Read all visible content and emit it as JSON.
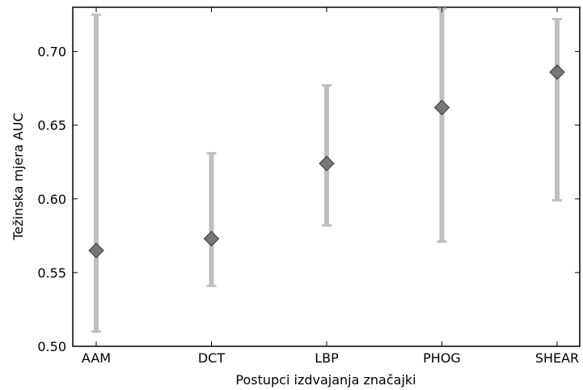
{
  "chart_data": {
    "type": "errorbar",
    "title": "",
    "xlabel": "Postupci izdvajanja značajki",
    "ylabel": "Težinska mjera AUC",
    "categories": [
      "AAM",
      "DCT",
      "LBP",
      "PHOG",
      "SHEAR"
    ],
    "values": [
      0.565,
      0.573,
      0.624,
      0.662,
      0.686
    ],
    "lower": [
      0.51,
      0.541,
      0.582,
      0.571,
      0.599
    ],
    "upper": [
      0.725,
      0.631,
      0.677,
      0.729,
      0.722
    ],
    "ylim": [
      0.5,
      0.73
    ],
    "yticks": [
      0.5,
      0.55,
      0.6,
      0.65,
      0.7
    ],
    "ytick_labels": [
      "0.50",
      "0.55",
      "0.60",
      "0.65",
      "0.70"
    ],
    "grid": false,
    "colors": {
      "errorbar": "#bfbfbf",
      "marker_fill": "#777777",
      "marker_stroke": "#3a3a3a",
      "axes": "#000000"
    }
  }
}
